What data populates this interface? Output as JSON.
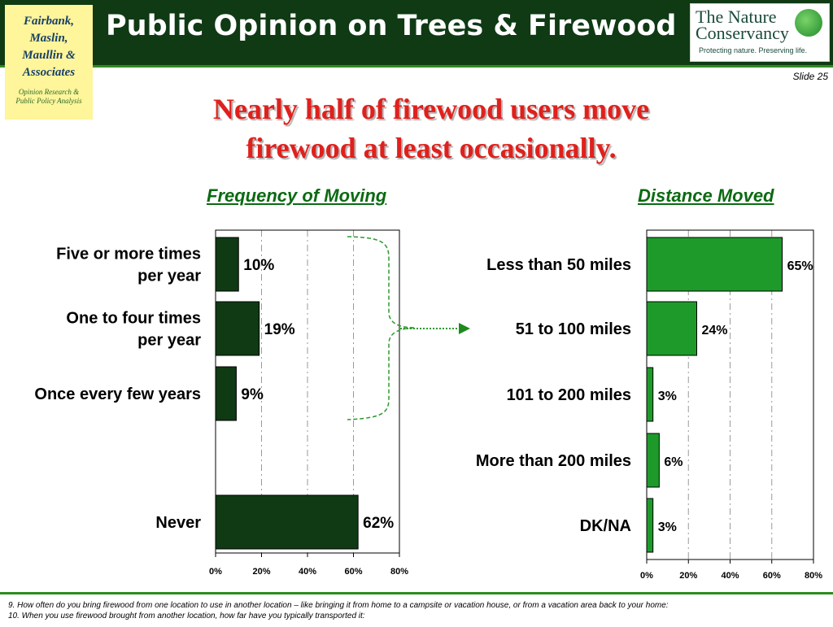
{
  "firm": {
    "name_lines": [
      "Fairbank,",
      "Maslin,",
      "Maullin &",
      "Associates"
    ],
    "tagline_lines": [
      "Opinion Research &",
      "Public Policy Analysis"
    ]
  },
  "header": {
    "title": "Public Opinion on Trees & Firewood"
  },
  "logo": {
    "name_lines": [
      "The Nature",
      "Conservancy"
    ],
    "tagline": "Protecting nature. Preserving life."
  },
  "slide_number": "Slide 25",
  "headline_lines": [
    "Nearly half of firewood users move",
    "firewood at least occasionally."
  ],
  "chart_data": [
    {
      "type": "bar",
      "orientation": "horizontal",
      "title": "Frequency of Moving",
      "categories": [
        [
          "Five or more times",
          "per year"
        ],
        [
          "One to four times",
          "per year"
        ],
        [
          "Once every few years"
        ],
        [
          "Never"
        ]
      ],
      "values": [
        10,
        19,
        9,
        62
      ],
      "value_labels": [
        "10%",
        "19%",
        "9%",
        "62%"
      ],
      "xlim": [
        0,
        80
      ],
      "x_ticks": [
        "0%",
        "20%",
        "40%",
        "60%",
        "80%"
      ],
      "bar_color": "#0f3a14",
      "gridlines": "dashed vertical"
    },
    {
      "type": "bar",
      "orientation": "horizontal",
      "title": "Distance Moved",
      "categories": [
        [
          "Less than 50 miles"
        ],
        [
          "51 to 100 miles"
        ],
        [
          "101 to 200 miles"
        ],
        [
          "More than 200 miles"
        ],
        [
          "DK/NA"
        ]
      ],
      "values": [
        65,
        24,
        3,
        6,
        3
      ],
      "value_labels": [
        "65%",
        "24%",
        "3%",
        "6%",
        "3%"
      ],
      "xlim": [
        0,
        80
      ],
      "x_ticks": [
        "0%",
        "20%",
        "40%",
        "60%",
        "80%"
      ],
      "bar_color": "#1e9a2a",
      "gridlines": "dashed vertical"
    }
  ],
  "footnotes": [
    "9. How often do you bring firewood from one location to use in another location – like bringing it from home to a campsite or vacation house, or from a vacation area back to your home:",
    "10. When you use firewood brought from another location, how far have you typically transported it:"
  ]
}
